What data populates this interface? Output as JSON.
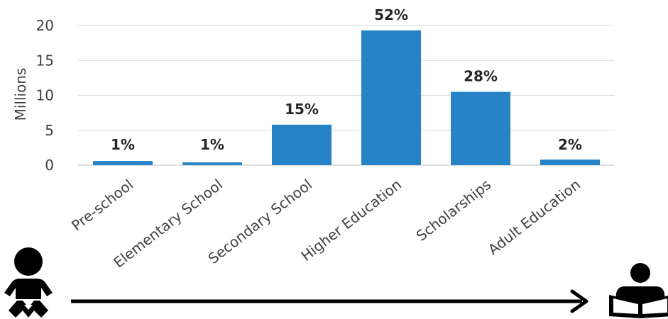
{
  "chart_data": {
    "type": "bar",
    "ylabel": "Millions",
    "xlabel": "",
    "categories": [
      "Pre-school",
      "Elementary School",
      "Secondary School",
      "Higher Education",
      "Scholarships",
      "Adult Education"
    ],
    "values": [
      0.6,
      0.4,
      5.8,
      19.3,
      10.5,
      0.8
    ],
    "data_labels": [
      "1%",
      "1%",
      "15%",
      "52%",
      "28%",
      "2%"
    ],
    "ylim": [
      0,
      20
    ],
    "yticks": [
      "0",
      "5",
      "10",
      "15",
      "20"
    ],
    "grid": true,
    "bar_color": "#2683C6",
    "grid_color": "#D9D9D9"
  },
  "icons": {
    "left": "baby-icon",
    "right": "reading-person-icon",
    "arrow": "right-arrow"
  }
}
